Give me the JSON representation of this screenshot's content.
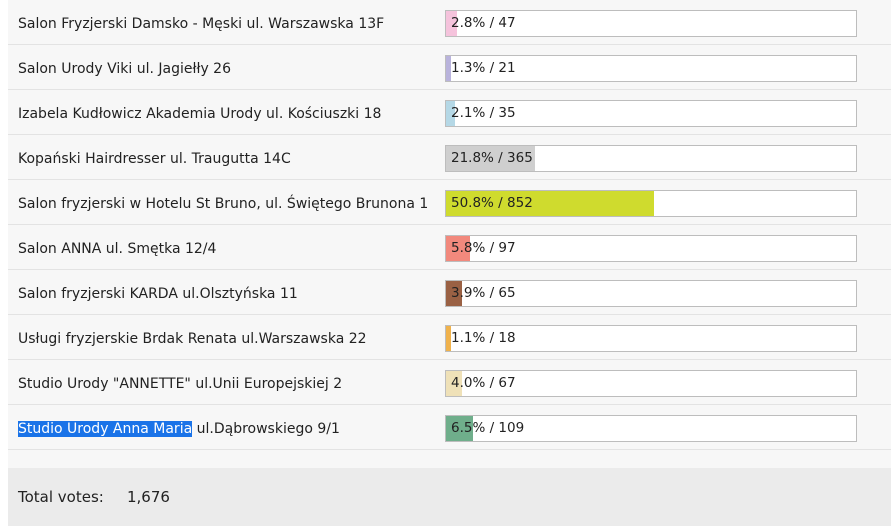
{
  "poll": {
    "options": [
      {
        "label": "Salon Fryzjerski Damsko - Męski ul. Warszawska 13F",
        "percent": 2.8,
        "votes": "47",
        "display": "2.8% / 47",
        "color": "#f5c3dc"
      },
      {
        "label": "Salon Urody Viki ul. Jagiełły 26",
        "percent": 1.3,
        "votes": "21",
        "display": "1.3% / 21",
        "color": "#b9b3dc"
      },
      {
        "label": "Izabela Kudłowicz Akademia Urody ul. Kościuszki 18",
        "percent": 2.1,
        "votes": "35",
        "display": "2.1% / 35",
        "color": "#b5d8e6"
      },
      {
        "label": "Kopański Hairdresser ul. Traugutta 14C",
        "percent": 21.8,
        "votes": "365",
        "display": "21.8% / 365",
        "color": "#cfcfcf"
      },
      {
        "label": "Salon fryzjerski w Hotelu St Bruno, ul. Świętego Brunona 1",
        "percent": 50.8,
        "votes": "852",
        "display": "50.8% / 852",
        "color": "#cfdb2e"
      },
      {
        "label": "Salon ANNA ul. Smętka 12/4",
        "percent": 5.8,
        "votes": "97",
        "display": "5.8% / 97",
        "color": "#f2897d"
      },
      {
        "label": "Salon fryzjerski KARDA ul.Olsztyńska 11",
        "percent": 3.9,
        "votes": "65",
        "display": "3.9% / 65",
        "color": "#9a6144"
      },
      {
        "label": "Usługi fryzjerskie Brdak Renata ul.Warszawska 22",
        "percent": 1.1,
        "votes": "18",
        "display": "1.1% / 18",
        "color": "#f0b24c"
      },
      {
        "label": "Studio Urody \"ANNETTE\" ul.Unii Europejskiej 2",
        "percent": 4.0,
        "votes": "67",
        "display": "4.0% / 67",
        "color": "#efe1b8"
      },
      {
        "label_selected": "Studio Urody Anna Maria",
        "label_rest": " ul.Dąbrowskiego 9/1",
        "percent": 6.5,
        "votes": "109",
        "display": "6.5% / 109",
        "color": "#6fae8b"
      }
    ],
    "total_label": "Total votes:",
    "total_value": "1,676"
  }
}
